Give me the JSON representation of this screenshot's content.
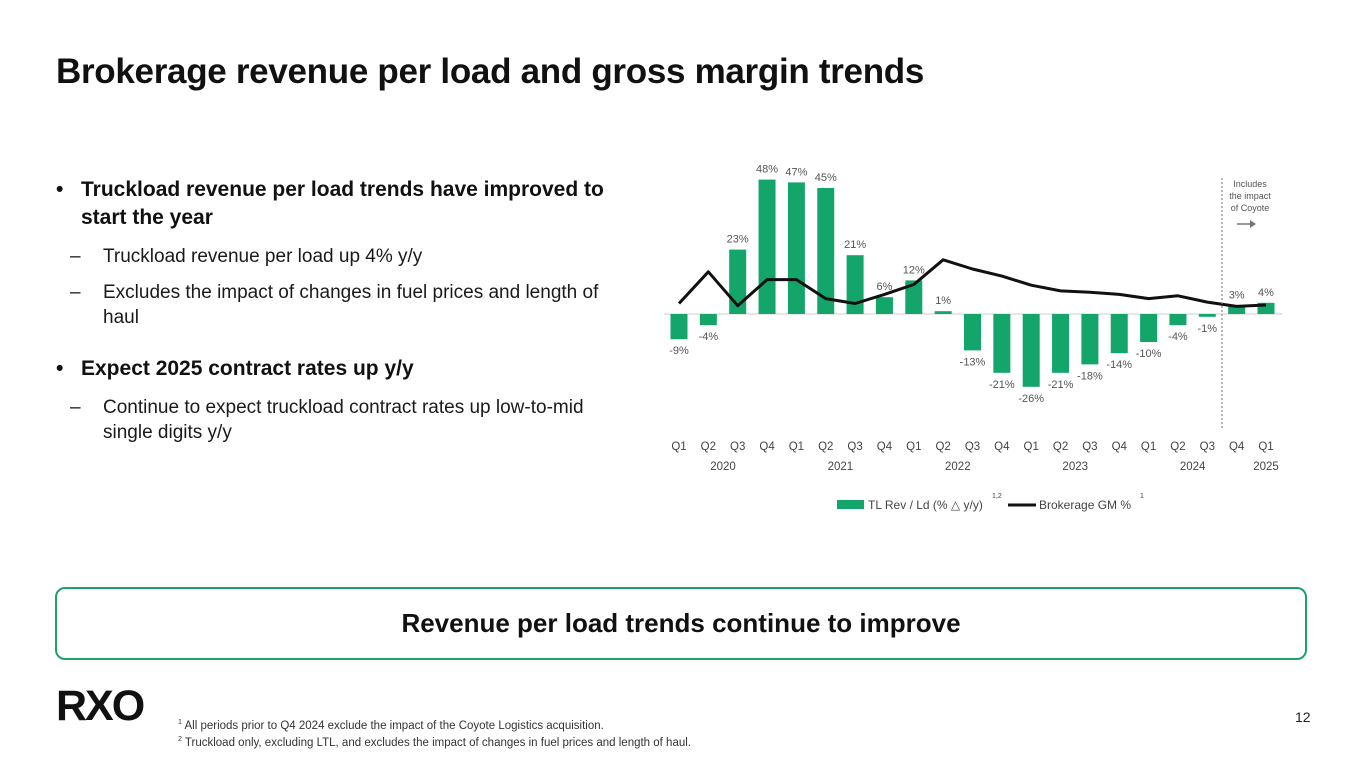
{
  "title": "Brokerage revenue per load and gross margin trends",
  "bullets": [
    {
      "marker": "•",
      "text": "Truckload revenue per load trends have improved to start the year",
      "subs": [
        {
          "marker": "–",
          "text": "Truckload revenue per load up 4% y/y"
        },
        {
          "marker": "–",
          "text": "Excludes the impact of changes in fuel prices and length of haul"
        }
      ]
    },
    {
      "marker": "•",
      "text": "Expect 2025 contract rates up y/y",
      "subs": [
        {
          "marker": "–",
          "text": "Continue to expect truckload contract rates up low-to-mid single digits y/y"
        }
      ]
    }
  ],
  "callout": "Revenue per load trends continue to improve",
  "logo_text": "RXO",
  "footnotes": [
    {
      "mark": "1",
      "text": "All periods prior to Q4 2024 exclude the impact of the Coyote Logistics acquisition."
    },
    {
      "mark": "2",
      "text": "Truckload only, excluding LTL, and excludes the impact of changes in fuel prices and length of haul."
    }
  ],
  "page_number": "12",
  "colors": {
    "bar": "#14a56b",
    "line": "#111111",
    "accent": "#1aa36a",
    "grid": "#cfcfcf"
  },
  "chart_data": {
    "type": "bar",
    "categories": [
      "Q1",
      "Q2",
      "Q3",
      "Q4",
      "Q1",
      "Q2",
      "Q3",
      "Q4",
      "Q1",
      "Q2",
      "Q3",
      "Q4",
      "Q1",
      "Q2",
      "Q3",
      "Q4",
      "Q1",
      "Q2",
      "Q3",
      "Q4",
      "Q1"
    ],
    "years": [
      {
        "label": "2020",
        "from": 0,
        "to": 3
      },
      {
        "label": "2021",
        "from": 4,
        "to": 7
      },
      {
        "label": "2022",
        "from": 8,
        "to": 11
      },
      {
        "label": "2023",
        "from": 12,
        "to": 15
      },
      {
        "label": "2024",
        "from": 16,
        "to": 19
      },
      {
        "label": "2025",
        "from": 20,
        "to": 20
      }
    ],
    "series": [
      {
        "name": "TL Rev / Ld (% △ y/y)",
        "superscript": "1,2",
        "type": "bar",
        "values": [
          -9,
          -4,
          23,
          48,
          47,
          45,
          21,
          6,
          12,
          1,
          -13,
          -21,
          -26,
          -21,
          -18,
          -14,
          -10,
          -4,
          -1,
          3,
          4
        ],
        "labels": [
          "-9%",
          "-4%",
          "23%",
          "48%",
          "47%",
          "45%",
          "21%",
          "6%",
          "12%",
          "1%",
          "-13%",
          "-21%",
          "-26%",
          "-21%",
          "-18%",
          "-14%",
          "-10%",
          "-4%",
          "-1%",
          "3%",
          "4%"
        ]
      },
      {
        "name": "Brokerage GM %",
        "superscript": "1",
        "type": "line",
        "values": [
          15.1,
          19.6,
          14.8,
          18.5,
          18.5,
          15.8,
          15.1,
          16.4,
          17.8,
          21.3,
          20.0,
          19.0,
          17.7,
          16.9,
          16.7,
          16.4,
          15.8,
          16.2,
          15.3,
          14.7,
          14.9
        ],
        "axis": "secondary (unlabeled)"
      }
    ],
    "ylim": [
      -50,
      55
    ],
    "annotation": {
      "text": [
        "Includes",
        "the impact",
        "of Coyote"
      ],
      "after_index": 18,
      "arrow": "right"
    }
  }
}
